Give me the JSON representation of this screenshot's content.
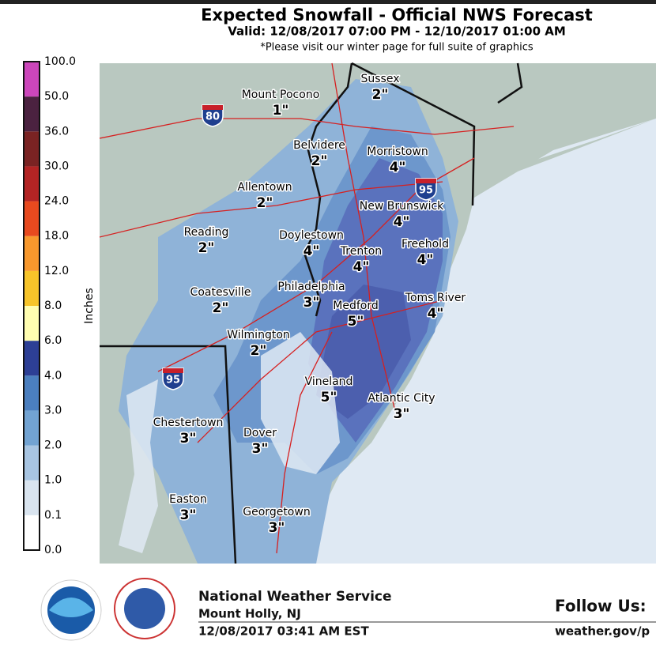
{
  "header": {
    "title": "Expected Snowfall - Official NWS Forecast",
    "valid": "Valid: 12/08/2017 07:00 PM - 12/10/2017 01:00 AM",
    "note": "*Please visit our winter page for full suite of graphics"
  },
  "legend": {
    "title": "Inches",
    "labels": [
      "0.0",
      "0.1",
      "1.0",
      "2.0",
      "3.0",
      "4.0",
      "6.0",
      "8.0",
      "12.0",
      "18.0",
      "24.0",
      "30.0",
      "36.0",
      "50.0",
      "100.0"
    ],
    "colors": [
      "#ffffff",
      "#d9e4ef",
      "#a8c5e2",
      "#72a3d2",
      "#4b7fbf",
      "#2d3f95",
      "#fffdb0",
      "#f7c42a",
      "#f8982d",
      "#e84a1f",
      "#b32424",
      "#7a2323",
      "#4b2240",
      "#cc46bb"
    ]
  },
  "map": {
    "cities": [
      {
        "name": "Mount Pocono",
        "amount": "1\""
      },
      {
        "name": "Sussex",
        "amount": "2\""
      },
      {
        "name": "Belvidere",
        "amount": "2\""
      },
      {
        "name": "Morristown",
        "amount": "4\""
      },
      {
        "name": "Allentown",
        "amount": "2\""
      },
      {
        "name": "New Brunswick",
        "amount": "4\""
      },
      {
        "name": "Reading",
        "amount": "2\""
      },
      {
        "name": "Doylestown",
        "amount": "4\""
      },
      {
        "name": "Trenton",
        "amount": "4\""
      },
      {
        "name": "Freehold",
        "amount": "4\""
      },
      {
        "name": "Coatesville",
        "amount": "2\""
      },
      {
        "name": "Philadelphia",
        "amount": "3\""
      },
      {
        "name": "Medford",
        "amount": "5\""
      },
      {
        "name": "Toms River",
        "amount": "4\""
      },
      {
        "name": "Wilmington",
        "amount": "2\""
      },
      {
        "name": "Vineland",
        "amount": "5\""
      },
      {
        "name": "Atlantic City",
        "amount": "3\""
      },
      {
        "name": "Chestertown",
        "amount": "3\""
      },
      {
        "name": "Dover",
        "amount": "3\""
      },
      {
        "name": "Easton",
        "amount": "3\""
      },
      {
        "name": "Georgetown",
        "amount": "3\""
      }
    ],
    "shields": [
      "80",
      "95",
      "95"
    ]
  },
  "footer": {
    "agency": "National Weather Service",
    "office": "Mount Holly, NJ",
    "issued": "12/08/2017 03:41 AM EST",
    "follow": "Follow Us:",
    "url": "weather.gov/p"
  }
}
